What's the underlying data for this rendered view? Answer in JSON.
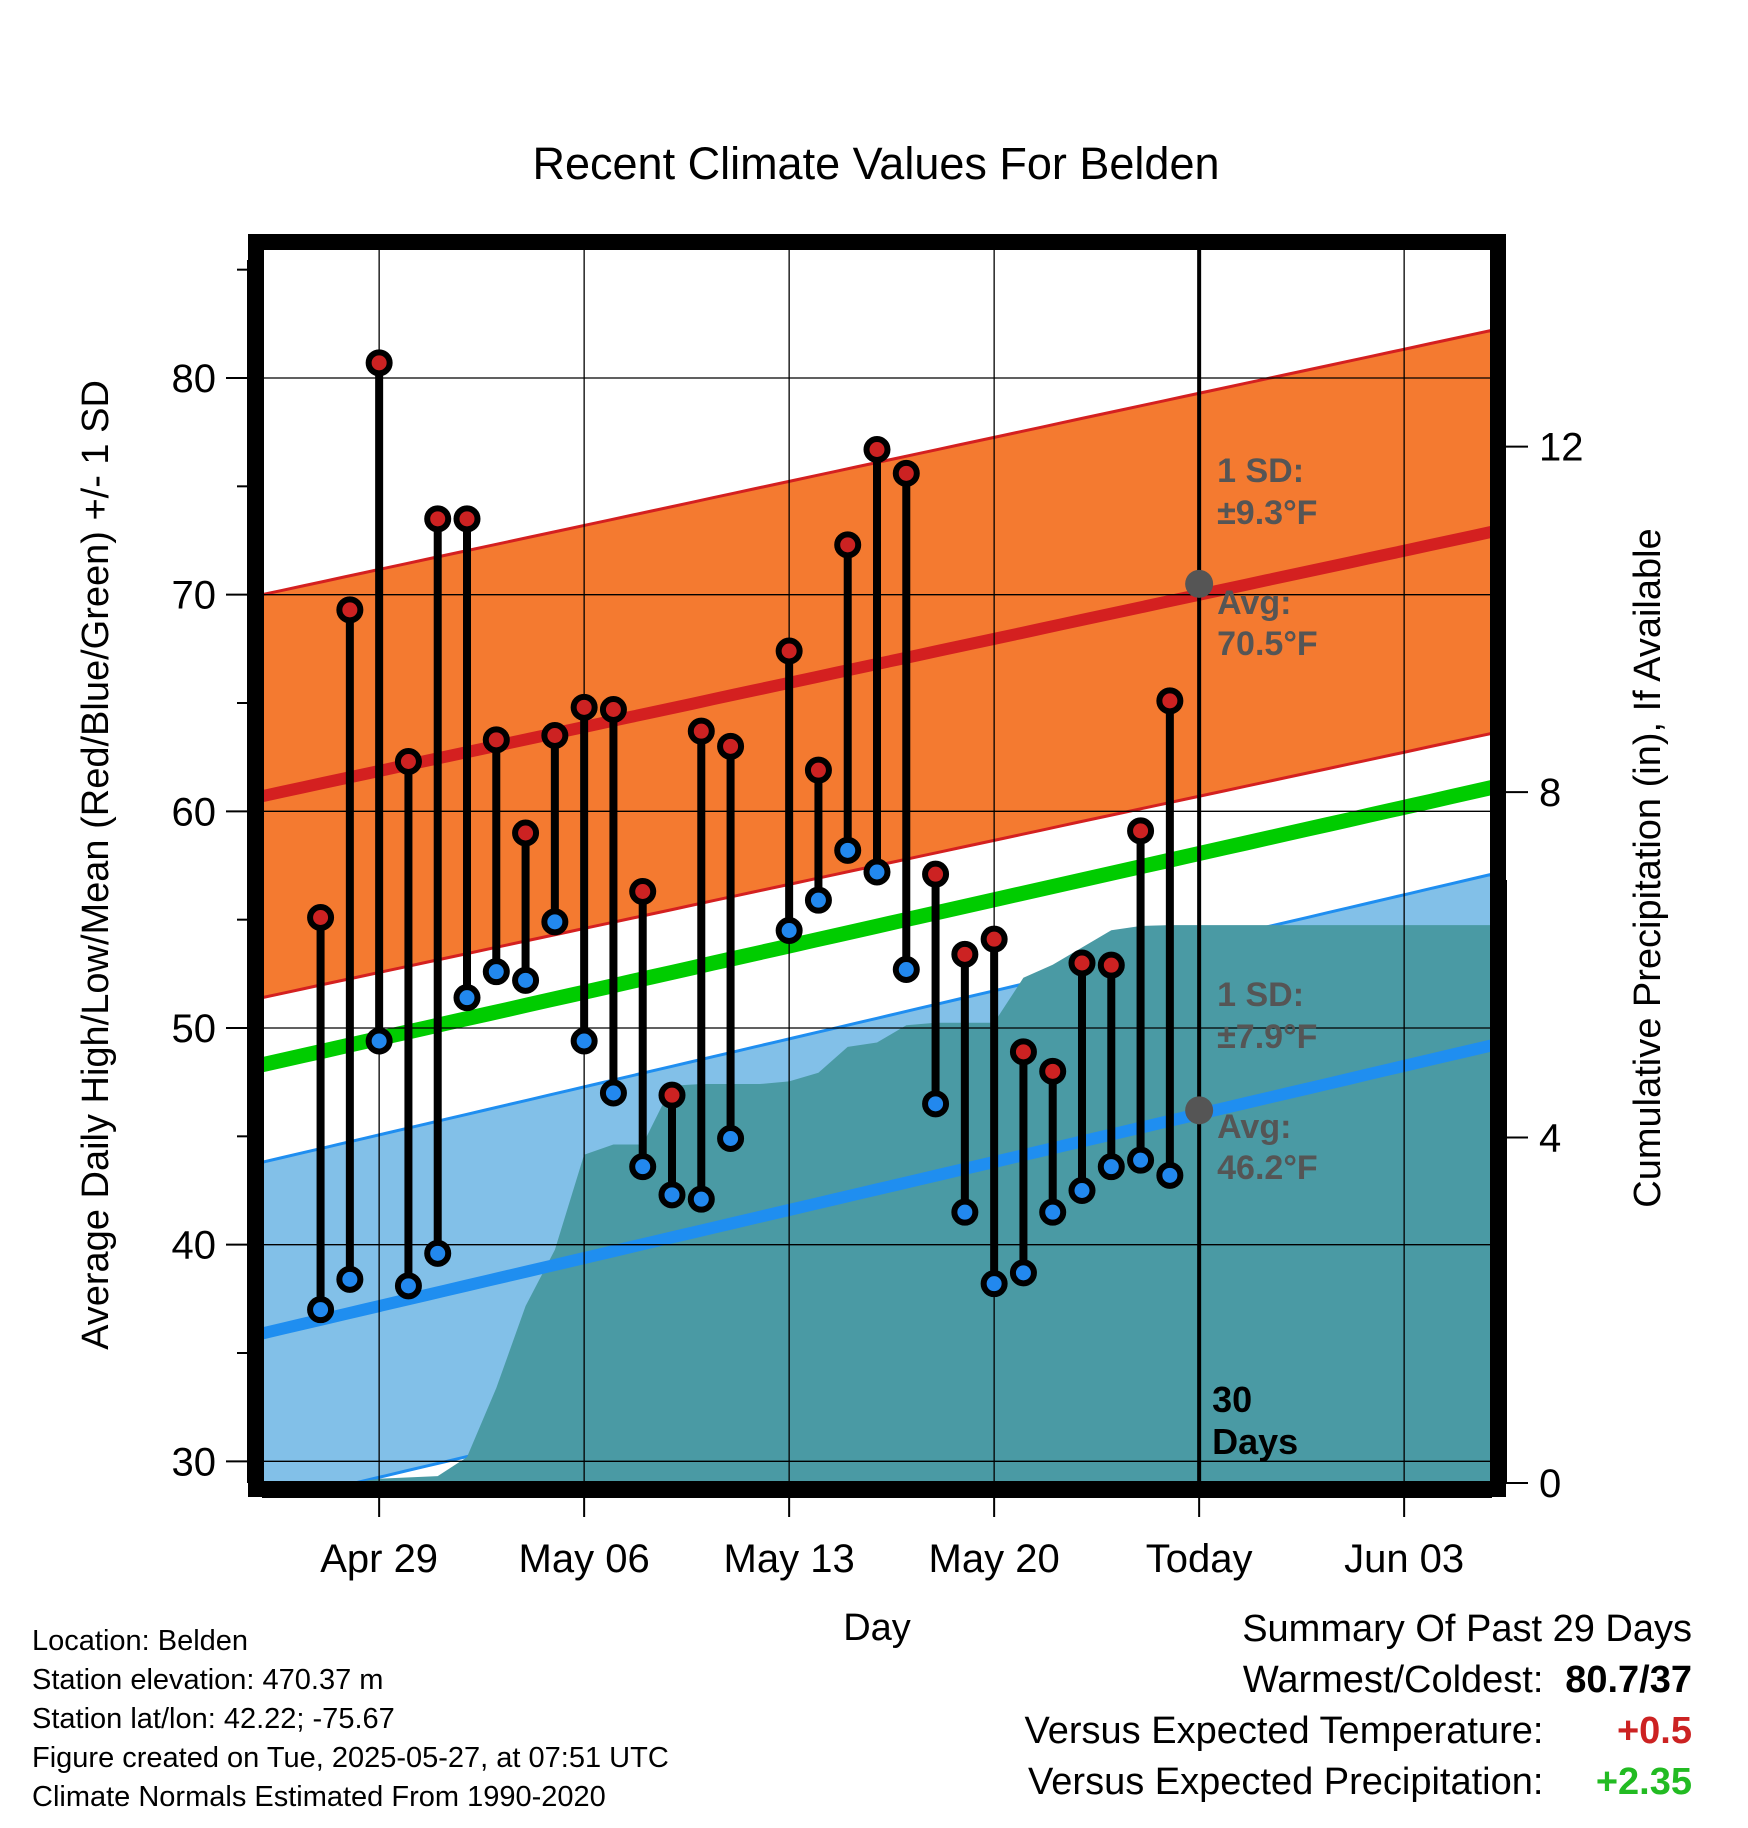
{
  "chart_data": {
    "type": "line",
    "title": "Recent Climate Values For Belden",
    "xlabel": "Day",
    "ylabel_left": "Average Daily High/Low/Mean (Red/Blue/Green) +/- 1 SD",
    "ylabel_right": "Cumulative Precipitation (in), If Available",
    "x_range": [
      "2025-04-25",
      "2025-06-06"
    ],
    "y_left_range": [
      29,
      86
    ],
    "y_right_range": [
      0,
      14.3
    ],
    "y_left_ticks": [
      "30",
      "40",
      "50",
      "60",
      "70",
      "80"
    ],
    "y_right_ticks": [
      "0",
      "4",
      "8",
      "12"
    ],
    "x_ticks": [
      {
        "date": "2025-04-29",
        "label": "Apr 29"
      },
      {
        "date": "2025-05-06",
        "label": "May 06"
      },
      {
        "date": "2025-05-13",
        "label": "May 13"
      },
      {
        "date": "2025-05-20",
        "label": "May 20"
      },
      {
        "date": "2025-05-27",
        "label": "Today"
      },
      {
        "date": "2025-06-03",
        "label": "Jun 03"
      }
    ],
    "today": "2025-05-27",
    "normals": {
      "high_avg_start": 60.7,
      "high_avg_end": 72.9,
      "high_sd": 9.3,
      "low_avg_start": 35.9,
      "low_avg_end": 49.2,
      "low_sd": 7.9,
      "mean_start": 48.3,
      "mean_end": 61.1,
      "colors": {
        "high_band": "#f47a30",
        "high_line": "#d42020",
        "low_band": "#82c0e8",
        "low_line": "#1f8ef0",
        "mean_line": "#00cc00",
        "precip": "#4a9aa4"
      }
    },
    "series": [
      {
        "name": "High",
        "color": "#cc2222",
        "values": [
          55.1,
          69.3,
          80.7,
          62.3,
          73.5,
          73.5,
          63.3,
          59.0,
          63.5,
          64.8,
          64.7,
          56.3,
          46.9,
          63.7,
          63.0,
          null,
          67.4,
          61.9,
          72.3,
          76.7,
          75.6,
          57.1,
          53.4,
          54.1,
          48.9,
          48.0,
          53.0,
          52.9,
          59.1,
          65.1
        ]
      },
      {
        "name": "Low",
        "color": "#2288ee",
        "values": [
          37.0,
          38.4,
          49.4,
          38.1,
          39.6,
          51.4,
          52.6,
          52.2,
          54.9,
          49.4,
          47.0,
          43.6,
          42.3,
          42.1,
          44.9,
          null,
          54.5,
          55.9,
          58.2,
          57.2,
          52.7,
          46.5,
          41.5,
          38.2,
          38.7,
          41.5,
          42.5,
          43.6,
          43.9,
          43.2
        ]
      }
    ],
    "dates": [
      "2025-04-27",
      "2025-04-28",
      "2025-04-29",
      "2025-04-30",
      "2025-05-01",
      "2025-05-02",
      "2025-05-03",
      "2025-05-04",
      "2025-05-05",
      "2025-05-06",
      "2025-05-07",
      "2025-05-08",
      "2025-05-09",
      "2025-05-10",
      "2025-05-11",
      "2025-05-12",
      "2025-05-13",
      "2025-05-14",
      "2025-05-15",
      "2025-05-16",
      "2025-05-17",
      "2025-05-18",
      "2025-05-19",
      "2025-05-20",
      "2025-05-21",
      "2025-05-22",
      "2025-05-23",
      "2025-05-24",
      "2025-05-25",
      "2025-05-26"
    ],
    "precip_cumulative": [
      [
        "2025-04-25",
        0.0
      ],
      [
        "2025-04-28",
        0.0
      ],
      [
        "2025-04-29",
        0.05
      ],
      [
        "2025-05-01",
        0.08
      ],
      [
        "2025-05-02",
        0.3
      ],
      [
        "2025-05-03",
        1.1
      ],
      [
        "2025-05-04",
        2.05
      ],
      [
        "2025-05-05",
        2.7
      ],
      [
        "2025-05-06",
        3.8
      ],
      [
        "2025-05-07",
        3.92
      ],
      [
        "2025-05-08",
        3.92
      ],
      [
        "2025-05-09",
        4.6
      ],
      [
        "2025-05-10",
        4.62
      ],
      [
        "2025-05-12",
        4.62
      ],
      [
        "2025-05-13",
        4.65
      ],
      [
        "2025-05-14",
        4.75
      ],
      [
        "2025-05-15",
        5.05
      ],
      [
        "2025-05-16",
        5.1
      ],
      [
        "2025-05-17",
        5.3
      ],
      [
        "2025-05-18",
        5.33
      ],
      [
        "2025-05-20",
        5.33
      ],
      [
        "2025-05-21",
        5.85
      ],
      [
        "2025-05-22",
        6.0
      ],
      [
        "2025-05-23",
        6.2
      ],
      [
        "2025-05-24",
        6.4
      ],
      [
        "2025-05-25",
        6.45
      ],
      [
        "2025-05-26",
        6.46
      ],
      [
        "2025-06-06",
        6.46
      ]
    ],
    "annotations": {
      "high_sd_label": [
        "1 SD:",
        "±9.3°F"
      ],
      "high_avg_label": [
        "Avg:",
        "70.5°F"
      ],
      "low_sd_label": [
        "1 SD:",
        "±7.9°F"
      ],
      "low_avg_label": [
        "Avg:",
        "46.2°F"
      ],
      "days_label": [
        "30",
        "Days"
      ],
      "today_high_avg": 70.5,
      "today_low_avg": 46.2
    }
  },
  "info": {
    "location": "Location: Belden",
    "elevation": "Station elevation: 470.37 m",
    "latlon": "Station lat/lon: 42.22; -75.67",
    "created": "Figure created on Tue, 2025-05-27, at 07:51 UTC",
    "normals": "Climate Normals Estimated From 1990-2020"
  },
  "summary": {
    "heading": "Summary Of Past 29 Days",
    "warm_cold_label": "Warmest/Coldest:",
    "warm_cold_value": "80.7/37",
    "temp_label": "Versus Expected Temperature:",
    "temp_value": "+0.5",
    "precip_label": "Versus Expected Precipitation:",
    "precip_value": "+2.35"
  }
}
